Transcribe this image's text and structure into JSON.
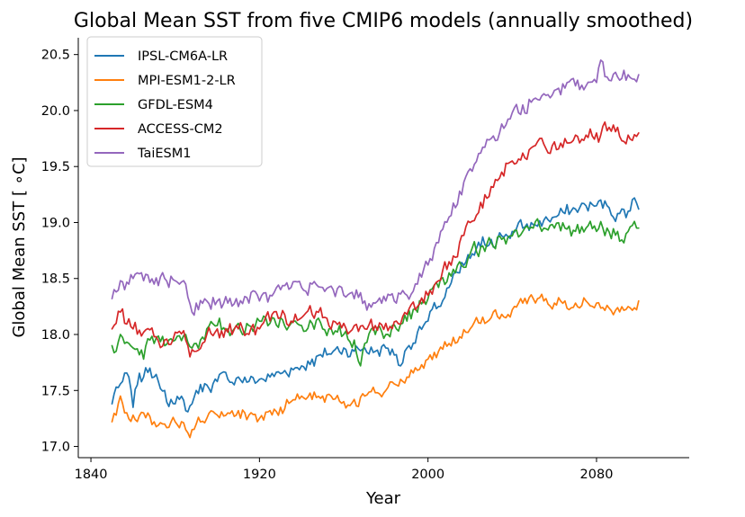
{
  "chart_data": {
    "type": "line",
    "title": "Global Mean SST from five CMIP6 models (annually smoothed)",
    "xlabel": "Year",
    "ylabel": "Global Mean SST [$^\\circ$C]",
    "ylabel_display": "Global Mean SST [ ∘C]",
    "xlim": [
      1834,
      2124
    ],
    "ylim": [
      16.9,
      20.65
    ],
    "xticks": [
      1840,
      1920,
      2000,
      2080
    ],
    "xtick_labels": [
      "1840",
      "1920",
      "2000",
      "2080"
    ],
    "yticks": [
      17.0,
      17.5,
      18.0,
      18.5,
      19.0,
      19.5,
      20.0,
      20.5
    ],
    "ytick_labels": [
      "17.0",
      "17.5",
      "18.0",
      "18.5",
      "19.0",
      "19.5",
      "20.0",
      "20.5"
    ],
    "grid": false,
    "legend_position": "upper-left",
    "x_range": [
      1850,
      2100
    ],
    "series": [
      {
        "name": "IPSL-CM6A-LR",
        "color": "#1f77b4",
        "anchors": [
          [
            1850,
            17.38
          ],
          [
            1852,
            17.53
          ],
          [
            1855,
            17.58
          ],
          [
            1858,
            17.62
          ],
          [
            1860,
            17.35
          ],
          [
            1862,
            17.55
          ],
          [
            1865,
            17.62
          ],
          [
            1868,
            17.7
          ],
          [
            1870,
            17.62
          ],
          [
            1872,
            17.58
          ],
          [
            1875,
            17.5
          ],
          [
            1878,
            17.42
          ],
          [
            1880,
            17.38
          ],
          [
            1882,
            17.42
          ],
          [
            1885,
            17.32
          ],
          [
            1888,
            17.38
          ],
          [
            1890,
            17.5
          ],
          [
            1895,
            17.55
          ],
          [
            1900,
            17.58
          ],
          [
            1905,
            17.6
          ],
          [
            1910,
            17.62
          ],
          [
            1915,
            17.58
          ],
          [
            1920,
            17.6
          ],
          [
            1925,
            17.62
          ],
          [
            1930,
            17.65
          ],
          [
            1935,
            17.7
          ],
          [
            1940,
            17.72
          ],
          [
            1945,
            17.78
          ],
          [
            1950,
            17.8
          ],
          [
            1955,
            17.85
          ],
          [
            1960,
            17.88
          ],
          [
            1965,
            17.85
          ],
          [
            1970,
            17.88
          ],
          [
            1975,
            17.85
          ],
          [
            1980,
            17.88
          ],
          [
            1985,
            17.82
          ],
          [
            1987,
            17.72
          ],
          [
            1990,
            17.88
          ],
          [
            1995,
            18.02
          ],
          [
            2000,
            18.12
          ],
          [
            2005,
            18.25
          ],
          [
            2010,
            18.42
          ],
          [
            2015,
            18.55
          ],
          [
            2020,
            18.68
          ],
          [
            2025,
            18.78
          ],
          [
            2030,
            18.85
          ],
          [
            2035,
            18.88
          ],
          [
            2040,
            18.92
          ],
          [
            2045,
            18.95
          ],
          [
            2050,
            18.98
          ],
          [
            2055,
            19.02
          ],
          [
            2060,
            19.05
          ],
          [
            2065,
            19.08
          ],
          [
            2070,
            19.12
          ],
          [
            2075,
            19.15
          ],
          [
            2080,
            19.15
          ],
          [
            2085,
            19.15
          ],
          [
            2090,
            19.08
          ],
          [
            2095,
            19.1
          ],
          [
            2098,
            19.22
          ],
          [
            2100,
            19.12
          ]
        ],
        "noise": 0.065
      },
      {
        "name": "MPI-ESM1-2-LR",
        "color": "#ff7f0e",
        "anchors": [
          [
            1850,
            17.22
          ],
          [
            1852,
            17.28
          ],
          [
            1854,
            17.45
          ],
          [
            1856,
            17.3
          ],
          [
            1860,
            17.28
          ],
          [
            1865,
            17.3
          ],
          [
            1870,
            17.22
          ],
          [
            1875,
            17.2
          ],
          [
            1880,
            17.22
          ],
          [
            1885,
            17.15
          ],
          [
            1887,
            17.08
          ],
          [
            1890,
            17.2
          ],
          [
            1895,
            17.25
          ],
          [
            1900,
            17.28
          ],
          [
            1905,
            17.3
          ],
          [
            1910,
            17.32
          ],
          [
            1915,
            17.28
          ],
          [
            1920,
            17.25
          ],
          [
            1925,
            17.32
          ],
          [
            1930,
            17.35
          ],
          [
            1935,
            17.4
          ],
          [
            1940,
            17.45
          ],
          [
            1945,
            17.42
          ],
          [
            1950,
            17.45
          ],
          [
            1955,
            17.42
          ],
          [
            1960,
            17.4
          ],
          [
            1965,
            17.42
          ],
          [
            1970,
            17.45
          ],
          [
            1975,
            17.48
          ],
          [
            1980,
            17.5
          ],
          [
            1985,
            17.55
          ],
          [
            1990,
            17.62
          ],
          [
            1995,
            17.68
          ],
          [
            2000,
            17.78
          ],
          [
            2005,
            17.85
          ],
          [
            2010,
            17.92
          ],
          [
            2015,
            17.98
          ],
          [
            2020,
            18.05
          ],
          [
            2025,
            18.1
          ],
          [
            2030,
            18.15
          ],
          [
            2035,
            18.18
          ],
          [
            2040,
            18.22
          ],
          [
            2045,
            18.28
          ],
          [
            2050,
            18.32
          ],
          [
            2055,
            18.3
          ],
          [
            2060,
            18.28
          ],
          [
            2065,
            18.3
          ],
          [
            2070,
            18.28
          ],
          [
            2075,
            18.3
          ],
          [
            2080,
            18.28
          ],
          [
            2085,
            18.26
          ],
          [
            2090,
            18.24
          ],
          [
            2095,
            18.25
          ],
          [
            2100,
            18.3
          ]
        ],
        "noise": 0.055
      },
      {
        "name": "GFDL-ESM4",
        "color": "#2ca02c",
        "anchors": [
          [
            1850,
            17.9
          ],
          [
            1852,
            17.85
          ],
          [
            1854,
            18.0
          ],
          [
            1856,
            17.92
          ],
          [
            1860,
            17.88
          ],
          [
            1865,
            17.78
          ],
          [
            1868,
            17.95
          ],
          [
            1870,
            17.92
          ],
          [
            1875,
            17.9
          ],
          [
            1880,
            17.95
          ],
          [
            1885,
            18.0
          ],
          [
            1890,
            17.92
          ],
          [
            1895,
            18.05
          ],
          [
            1900,
            18.08
          ],
          [
            1905,
            18.05
          ],
          [
            1910,
            18.1
          ],
          [
            1915,
            18.08
          ],
          [
            1920,
            18.12
          ],
          [
            1925,
            18.1
          ],
          [
            1930,
            18.15
          ],
          [
            1935,
            18.1
          ],
          [
            1940,
            18.08
          ],
          [
            1945,
            18.1
          ],
          [
            1950,
            18.05
          ],
          [
            1955,
            18.0
          ],
          [
            1960,
            18.0
          ],
          [
            1965,
            17.95
          ],
          [
            1968,
            17.72
          ],
          [
            1970,
            17.92
          ],
          [
            1975,
            18.0
          ],
          [
            1980,
            18.0
          ],
          [
            1985,
            18.05
          ],
          [
            1990,
            18.12
          ],
          [
            1995,
            18.2
          ],
          [
            2000,
            18.32
          ],
          [
            2005,
            18.42
          ],
          [
            2010,
            18.55
          ],
          [
            2015,
            18.65
          ],
          [
            2020,
            18.72
          ],
          [
            2025,
            18.78
          ],
          [
            2030,
            18.82
          ],
          [
            2035,
            18.85
          ],
          [
            2040,
            18.88
          ],
          [
            2045,
            18.92
          ],
          [
            2050,
            18.95
          ],
          [
            2055,
            18.95
          ],
          [
            2060,
            18.95
          ],
          [
            2065,
            18.95
          ],
          [
            2070,
            18.92
          ],
          [
            2075,
            18.95
          ],
          [
            2080,
            18.92
          ],
          [
            2085,
            18.95
          ],
          [
            2090,
            18.92
          ],
          [
            2095,
            18.92
          ],
          [
            2100,
            18.95
          ]
        ],
        "noise": 0.07
      },
      {
        "name": "ACCESS-CM2",
        "color": "#d62728",
        "anchors": [
          [
            1850,
            18.05
          ],
          [
            1852,
            18.1
          ],
          [
            1854,
            18.2
          ],
          [
            1856,
            18.1
          ],
          [
            1860,
            18.05
          ],
          [
            1865,
            18.02
          ],
          [
            1870,
            17.98
          ],
          [
            1875,
            17.95
          ],
          [
            1880,
            18.02
          ],
          [
            1885,
            17.95
          ],
          [
            1887,
            17.8
          ],
          [
            1890,
            17.85
          ],
          [
            1895,
            18.0
          ],
          [
            1900,
            18.05
          ],
          [
            1905,
            18.02
          ],
          [
            1910,
            18.05
          ],
          [
            1915,
            18.0
          ],
          [
            1920,
            18.05
          ],
          [
            1925,
            18.12
          ],
          [
            1930,
            18.15
          ],
          [
            1935,
            18.12
          ],
          [
            1940,
            18.15
          ],
          [
            1945,
            18.18
          ],
          [
            1950,
            18.15
          ],
          [
            1955,
            18.12
          ],
          [
            1960,
            18.1
          ],
          [
            1965,
            18.08
          ],
          [
            1970,
            18.05
          ],
          [
            1975,
            18.08
          ],
          [
            1980,
            18.1
          ],
          [
            1985,
            18.12
          ],
          [
            1990,
            18.18
          ],
          [
            1995,
            18.25
          ],
          [
            2000,
            18.35
          ],
          [
            2005,
            18.48
          ],
          [
            2010,
            18.65
          ],
          [
            2015,
            18.82
          ],
          [
            2020,
            19.0
          ],
          [
            2025,
            19.18
          ],
          [
            2030,
            19.32
          ],
          [
            2035,
            19.45
          ],
          [
            2040,
            19.55
          ],
          [
            2045,
            19.62
          ],
          [
            2050,
            19.68
          ],
          [
            2055,
            19.7
          ],
          [
            2060,
            19.72
          ],
          [
            2065,
            19.75
          ],
          [
            2070,
            19.78
          ],
          [
            2075,
            19.78
          ],
          [
            2080,
            19.8
          ],
          [
            2085,
            19.82
          ],
          [
            2090,
            19.85
          ],
          [
            2095,
            19.78
          ],
          [
            2100,
            19.8
          ]
        ],
        "noise": 0.07
      },
      {
        "name": "TaiESM1",
        "color": "#9467bd",
        "anchors": [
          [
            1850,
            18.32
          ],
          [
            1852,
            18.38
          ],
          [
            1854,
            18.48
          ],
          [
            1856,
            18.4
          ],
          [
            1858,
            18.45
          ],
          [
            1860,
            18.5
          ],
          [
            1862,
            18.55
          ],
          [
            1865,
            18.48
          ],
          [
            1870,
            18.45
          ],
          [
            1875,
            18.5
          ],
          [
            1880,
            18.48
          ],
          [
            1885,
            18.45
          ],
          [
            1888,
            18.2
          ],
          [
            1890,
            18.28
          ],
          [
            1895,
            18.3
          ],
          [
            1900,
            18.3
          ],
          [
            1905,
            18.28
          ],
          [
            1910,
            18.25
          ],
          [
            1915,
            18.28
          ],
          [
            1920,
            18.3
          ],
          [
            1925,
            18.35
          ],
          [
            1930,
            18.4
          ],
          [
            1935,
            18.42
          ],
          [
            1940,
            18.42
          ],
          [
            1945,
            18.45
          ],
          [
            1950,
            18.42
          ],
          [
            1955,
            18.4
          ],
          [
            1960,
            18.35
          ],
          [
            1965,
            18.32
          ],
          [
            1970,
            18.3
          ],
          [
            1975,
            18.28
          ],
          [
            1980,
            18.3
          ],
          [
            1985,
            18.28
          ],
          [
            1990,
            18.35
          ],
          [
            1995,
            18.45
          ],
          [
            2000,
            18.62
          ],
          [
            2005,
            18.82
          ],
          [
            2010,
            19.05
          ],
          [
            2015,
            19.28
          ],
          [
            2020,
            19.48
          ],
          [
            2025,
            19.62
          ],
          [
            2030,
            19.75
          ],
          [
            2035,
            19.88
          ],
          [
            2040,
            19.98
          ],
          [
            2045,
            20.05
          ],
          [
            2050,
            20.1
          ],
          [
            2055,
            20.15
          ],
          [
            2060,
            20.18
          ],
          [
            2065,
            20.2
          ],
          [
            2070,
            20.22
          ],
          [
            2075,
            20.22
          ],
          [
            2080,
            20.25
          ],
          [
            2082,
            20.45
          ],
          [
            2085,
            20.3
          ],
          [
            2090,
            20.3
          ],
          [
            2095,
            20.32
          ],
          [
            2098,
            20.28
          ],
          [
            2100,
            20.32
          ]
        ],
        "noise": 0.07
      }
    ]
  }
}
